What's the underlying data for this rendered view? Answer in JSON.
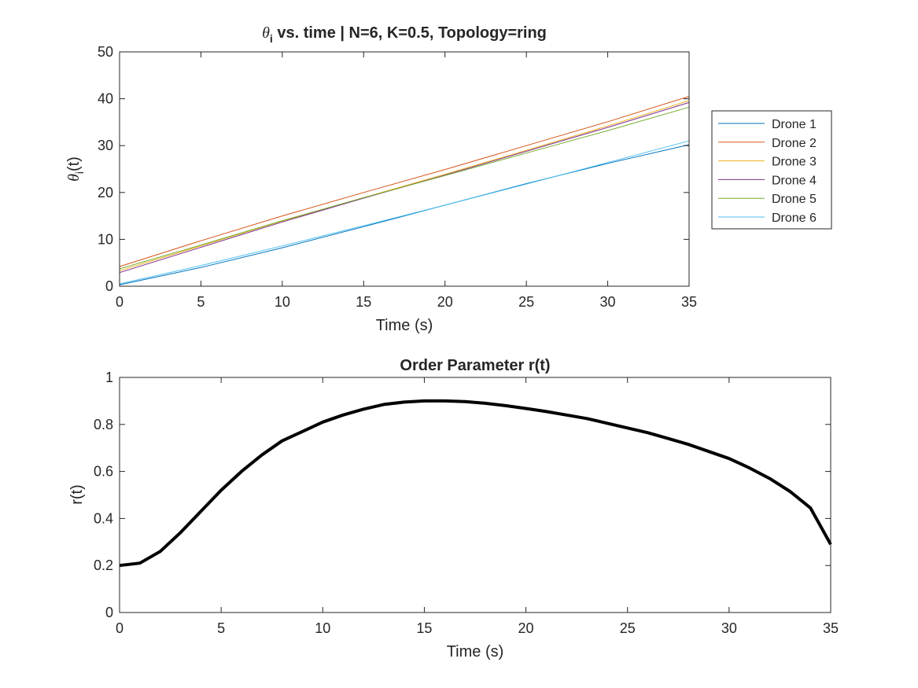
{
  "chart_data": [
    {
      "type": "line",
      "title_symbol": "θ",
      "title_symbol_sub": "i",
      "title": " vs. time | N=6, K=0.5, Topology=ring",
      "xlabel": "Time (s)",
      "ylabel_symbol": "θ",
      "ylabel_sub": "i",
      "ylabel_suffix": "(t)",
      "xlim": [
        0,
        35
      ],
      "ylim": [
        0,
        50
      ],
      "xticks": [
        0,
        5,
        10,
        15,
        20,
        25,
        30,
        35
      ],
      "yticks": [
        0,
        10,
        20,
        30,
        40,
        50
      ],
      "grid": false,
      "legend_position": "outside-right",
      "series": [
        {
          "name": "Drone 1",
          "color": "#0072BD",
          "x": [
            0,
            5,
            10,
            15,
            20,
            25,
            30,
            35
          ],
          "y": [
            0.3,
            4.0,
            8.2,
            12.7,
            17.3,
            21.9,
            26.2,
            30.2
          ]
        },
        {
          "name": "Drone 2",
          "color": "#D95319",
          "x": [
            0,
            5,
            10,
            15,
            20,
            25,
            30,
            35
          ],
          "y": [
            4.2,
            9.7,
            15.0,
            20.0,
            24.9,
            30.0,
            35.1,
            40.5
          ]
        },
        {
          "name": "Drone 3",
          "color": "#EDB120",
          "x": [
            0,
            5,
            10,
            15,
            20,
            25,
            30,
            35
          ],
          "y": [
            3.3,
            8.6,
            13.9,
            18.9,
            23.9,
            29.0,
            34.2,
            39.6
          ]
        },
        {
          "name": "Drone 4",
          "color": "#7E2F8E",
          "x": [
            0,
            5,
            10,
            15,
            20,
            25,
            30,
            35
          ],
          "y": [
            2.9,
            8.3,
            13.7,
            18.8,
            23.7,
            28.8,
            33.9,
            39.2
          ]
        },
        {
          "name": "Drone 5",
          "color": "#77AC30",
          "x": [
            0,
            5,
            10,
            15,
            20,
            25,
            30,
            35
          ],
          "y": [
            3.7,
            8.8,
            14.0,
            18.9,
            23.6,
            28.4,
            33.2,
            38.2
          ]
        },
        {
          "name": "Drone 6",
          "color": "#4DBEEE",
          "x": [
            0,
            5,
            10,
            15,
            20,
            25,
            30,
            35
          ],
          "y": [
            0.5,
            4.4,
            8.6,
            12.9,
            17.3,
            21.8,
            26.4,
            31.0
          ]
        }
      ]
    },
    {
      "type": "line",
      "title": "Order Parameter r(t)",
      "xlabel": "Time (s)",
      "ylabel": "r(t)",
      "xlim": [
        0,
        35
      ],
      "ylim": [
        0,
        1
      ],
      "xticks": [
        0,
        5,
        10,
        15,
        20,
        25,
        30,
        35
      ],
      "yticks": [
        0,
        0.2,
        0.4,
        0.6,
        0.8,
        1
      ],
      "ytick_labels": [
        "0",
        "0.2",
        "0.4",
        "0.6",
        "0.8",
        "1"
      ],
      "grid": false,
      "series": [
        {
          "color": "#000000",
          "x": [
            0,
            1,
            2,
            3,
            4,
            5,
            6,
            7,
            8,
            9,
            10,
            11,
            12,
            13,
            14,
            15,
            16,
            17,
            18,
            19,
            20,
            21,
            22,
            23,
            24,
            25,
            26,
            27,
            28,
            29,
            30,
            31,
            32,
            33,
            34,
            35
          ],
          "y": [
            0.2,
            0.21,
            0.26,
            0.34,
            0.43,
            0.52,
            0.6,
            0.67,
            0.73,
            0.77,
            0.81,
            0.84,
            0.865,
            0.885,
            0.895,
            0.9,
            0.9,
            0.897,
            0.89,
            0.88,
            0.868,
            0.855,
            0.84,
            0.825,
            0.805,
            0.785,
            0.765,
            0.74,
            0.715,
            0.685,
            0.655,
            0.615,
            0.57,
            0.515,
            0.445,
            0.29
          ]
        }
      ]
    }
  ]
}
